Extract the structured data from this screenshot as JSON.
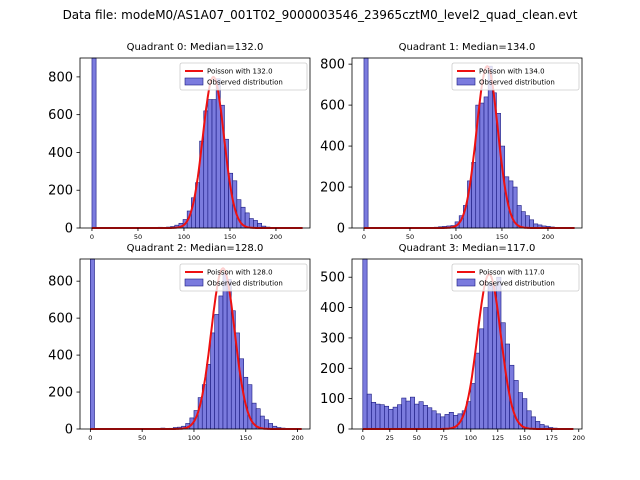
{
  "figure": {
    "suptitle": "Data file: modeM0/AS1A07_001T02_9000003546_23965cztM0_level2_quad_clean.evt",
    "colors": {
      "hist_fill": "#7b7bde",
      "hist_edge": "#1a1a80",
      "poisson_line": "#ee1111",
      "legend_edge": "#cccccc"
    }
  },
  "chart_data": [
    {
      "type": "bar",
      "title": "Quadrant 0: Median=132.0",
      "xlim": [
        -13,
        237
      ],
      "ylim": [
        0,
        900
      ],
      "xticks": [
        "0",
        "50",
        "100",
        "150",
        "200"
      ],
      "yticks": [
        "0",
        "200",
        "400",
        "600",
        "800"
      ],
      "legend": {
        "location": "upper-right",
        "entries": [
          "Poisson with 132.0",
          "Observed distribution"
        ]
      },
      "poisson_mean": 132.0,
      "poisson_peak": 800,
      "bin_width": 4.5,
      "spike": {
        "x_start": 0,
        "value": 900
      },
      "bars": [
        {
          "x": 72,
          "y": 4
        },
        {
          "x": 76.5,
          "y": 3
        },
        {
          "x": 81,
          "y": 5
        },
        {
          "x": 85.5,
          "y": 8
        },
        {
          "x": 90,
          "y": 15
        },
        {
          "x": 94.5,
          "y": 25
        },
        {
          "x": 99,
          "y": 45
        },
        {
          "x": 103.5,
          "y": 90
        },
        {
          "x": 108,
          "y": 160
        },
        {
          "x": 112.5,
          "y": 240
        },
        {
          "x": 117,
          "y": 460
        },
        {
          "x": 121.5,
          "y": 620
        },
        {
          "x": 126,
          "y": 680
        },
        {
          "x": 130.5,
          "y": 680
        },
        {
          "x": 135,
          "y": 790
        },
        {
          "x": 139.5,
          "y": 650
        },
        {
          "x": 144,
          "y": 470
        },
        {
          "x": 148.5,
          "y": 290
        },
        {
          "x": 153,
          "y": 250
        },
        {
          "x": 157.5,
          "y": 150
        },
        {
          "x": 162,
          "y": 110
        },
        {
          "x": 166.5,
          "y": 80
        },
        {
          "x": 171,
          "y": 50
        },
        {
          "x": 175.5,
          "y": 40
        },
        {
          "x": 180,
          "y": 25
        },
        {
          "x": 184.5,
          "y": 10
        },
        {
          "x": 189,
          "y": 5
        },
        {
          "x": 193.5,
          "y": 3
        },
        {
          "x": 198,
          "y": 2
        }
      ]
    },
    {
      "type": "bar",
      "title": "Quadrant 1: Median=134.0",
      "xlim": [
        -13,
        237
      ],
      "ylim": [
        0,
        830
      ],
      "xticks": [
        "0",
        "50",
        "100",
        "150",
        "200"
      ],
      "yticks": [
        "0",
        "200",
        "400",
        "600",
        "800"
      ],
      "legend": {
        "location": "upper-right",
        "entries": [
          "Poisson with 134.0",
          "Observed distribution"
        ]
      },
      "poisson_mean": 134.0,
      "poisson_peak": 790,
      "bin_width": 4.5,
      "spike": {
        "x_start": 0,
        "value": 830
      },
      "bars": [
        {
          "x": 72,
          "y": 3
        },
        {
          "x": 76.5,
          "y": 4
        },
        {
          "x": 81,
          "y": 6
        },
        {
          "x": 85.5,
          "y": 8
        },
        {
          "x": 90,
          "y": 10
        },
        {
          "x": 94.5,
          "y": 12
        },
        {
          "x": 99,
          "y": 30
        },
        {
          "x": 103.5,
          "y": 60
        },
        {
          "x": 108,
          "y": 110
        },
        {
          "x": 112.5,
          "y": 230
        },
        {
          "x": 117,
          "y": 320
        },
        {
          "x": 121.5,
          "y": 600
        },
        {
          "x": 126,
          "y": 610
        },
        {
          "x": 130.5,
          "y": 640
        },
        {
          "x": 135,
          "y": 790
        },
        {
          "x": 139.5,
          "y": 660
        },
        {
          "x": 144,
          "y": 560
        },
        {
          "x": 148.5,
          "y": 400
        },
        {
          "x": 153,
          "y": 250
        },
        {
          "x": 157.5,
          "y": 230
        },
        {
          "x": 162,
          "y": 200
        },
        {
          "x": 166.5,
          "y": 110
        },
        {
          "x": 171,
          "y": 80
        },
        {
          "x": 175.5,
          "y": 60
        },
        {
          "x": 180,
          "y": 40
        },
        {
          "x": 184.5,
          "y": 20
        },
        {
          "x": 189,
          "y": 15
        },
        {
          "x": 193.5,
          "y": 10
        },
        {
          "x": 198,
          "y": 8
        },
        {
          "x": 202.5,
          "y": 5
        }
      ]
    },
    {
      "type": "bar",
      "title": "Quadrant 2: Median=128.0",
      "xlim": [
        -10,
        212
      ],
      "ylim": [
        0,
        920
      ],
      "xticks": [
        "0",
        "50",
        "100",
        "150",
        "200"
      ],
      "yticks": [
        "0",
        "200",
        "400",
        "600",
        "800"
      ],
      "legend": {
        "location": "upper-right",
        "entries": [
          "Poisson with 128.0",
          "Observed distribution"
        ]
      },
      "poisson_mean": 128.0,
      "poisson_peak": 870,
      "bin_width": 4.0,
      "spike": {
        "x_start": 0,
        "value": 920
      },
      "bars": [
        {
          "x": 68,
          "y": 5
        },
        {
          "x": 72,
          "y": 3
        },
        {
          "x": 76,
          "y": 4
        },
        {
          "x": 80,
          "y": 8
        },
        {
          "x": 84,
          "y": 10
        },
        {
          "x": 88,
          "y": 15
        },
        {
          "x": 92,
          "y": 30
        },
        {
          "x": 96,
          "y": 60
        },
        {
          "x": 100,
          "y": 100
        },
        {
          "x": 104,
          "y": 170
        },
        {
          "x": 108,
          "y": 240
        },
        {
          "x": 112,
          "y": 350
        },
        {
          "x": 116,
          "y": 520
        },
        {
          "x": 120,
          "y": 620
        },
        {
          "x": 124,
          "y": 720
        },
        {
          "x": 128,
          "y": 840
        },
        {
          "x": 132,
          "y": 810
        },
        {
          "x": 136,
          "y": 640
        },
        {
          "x": 140,
          "y": 520
        },
        {
          "x": 144,
          "y": 380
        },
        {
          "x": 148,
          "y": 280
        },
        {
          "x": 152,
          "y": 240
        },
        {
          "x": 156,
          "y": 140
        },
        {
          "x": 160,
          "y": 110
        },
        {
          "x": 164,
          "y": 70
        },
        {
          "x": 168,
          "y": 50
        },
        {
          "x": 172,
          "y": 30
        },
        {
          "x": 176,
          "y": 15
        },
        {
          "x": 180,
          "y": 8
        },
        {
          "x": 184,
          "y": 5
        }
      ]
    },
    {
      "type": "bar",
      "title": "Quadrant 3: Median=117.0",
      "xlim": [
        -10,
        203
      ],
      "ylim": [
        0,
        560
      ],
      "xticks": [
        "0",
        "25",
        "50",
        "75",
        "100",
        "125",
        "150",
        "175",
        "200"
      ],
      "yticks": [
        "0",
        "100",
        "200",
        "300",
        "400",
        "500"
      ],
      "legend": {
        "location": "upper-right",
        "entries": [
          "Poisson with 117.0",
          "Observed distribution"
        ]
      },
      "poisson_mean": 117.0,
      "poisson_peak": 510,
      "bin_width": 4.0,
      "spike": {
        "x_start": 0,
        "value": 560
      },
      "bars": [
        {
          "x": 4,
          "y": 115
        },
        {
          "x": 8,
          "y": 88
        },
        {
          "x": 12,
          "y": 82
        },
        {
          "x": 16,
          "y": 80
        },
        {
          "x": 20,
          "y": 75
        },
        {
          "x": 24,
          "y": 65
        },
        {
          "x": 28,
          "y": 72
        },
        {
          "x": 32,
          "y": 80
        },
        {
          "x": 36,
          "y": 102
        },
        {
          "x": 40,
          "y": 92
        },
        {
          "x": 44,
          "y": 105
        },
        {
          "x": 48,
          "y": 82
        },
        {
          "x": 52,
          "y": 90
        },
        {
          "x": 56,
          "y": 78
        },
        {
          "x": 60,
          "y": 70
        },
        {
          "x": 64,
          "y": 60
        },
        {
          "x": 68,
          "y": 50
        },
        {
          "x": 72,
          "y": 40
        },
        {
          "x": 76,
          "y": 48
        },
        {
          "x": 80,
          "y": 55
        },
        {
          "x": 84,
          "y": 45
        },
        {
          "x": 88,
          "y": 50
        },
        {
          "x": 92,
          "y": 60
        },
        {
          "x": 96,
          "y": 90
        },
        {
          "x": 100,
          "y": 150
        },
        {
          "x": 104,
          "y": 250
        },
        {
          "x": 108,
          "y": 330
        },
        {
          "x": 112,
          "y": 400
        },
        {
          "x": 116,
          "y": 480
        },
        {
          "x": 120,
          "y": 470
        },
        {
          "x": 124,
          "y": 500
        },
        {
          "x": 128,
          "y": 350
        },
        {
          "x": 132,
          "y": 280
        },
        {
          "x": 136,
          "y": 210
        },
        {
          "x": 140,
          "y": 160
        },
        {
          "x": 144,
          "y": 120
        },
        {
          "x": 148,
          "y": 100
        },
        {
          "x": 152,
          "y": 60
        },
        {
          "x": 156,
          "y": 40
        },
        {
          "x": 160,
          "y": 25
        },
        {
          "x": 164,
          "y": 15
        },
        {
          "x": 168,
          "y": 10
        },
        {
          "x": 172,
          "y": 5
        },
        {
          "x": 176,
          "y": 3
        },
        {
          "x": 180,
          "y": 2
        }
      ]
    }
  ]
}
